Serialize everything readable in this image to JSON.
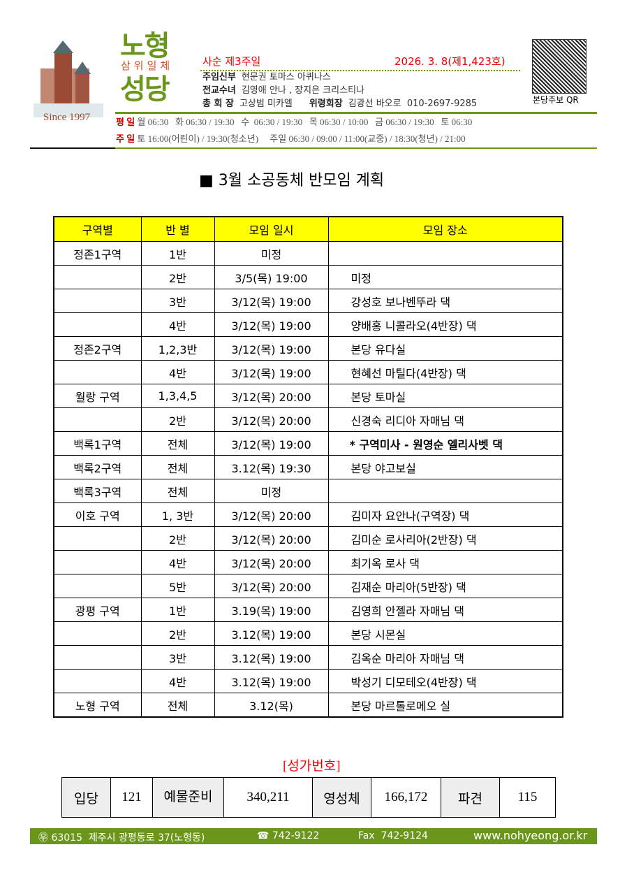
{
  "header": {
    "since": "Since 1997",
    "logo_top": "노형",
    "logo_sub": "삼위일체",
    "logo_bottom": "성당",
    "sunday": "사순 제3주일",
    "date": "2026. 3.  8(제1,423호)",
    "staff": [
      {
        "role": "주임신부",
        "name": "현문권 토마스 아퀴나스"
      },
      {
        "role": "전교수녀",
        "name": "김영애 안나 , 장지은 크리스티나"
      },
      {
        "role": "총 회 장",
        "name": "고상범 미카엘",
        "role2": "위령회장",
        "name2": "김광선 바오로  010-2697-9285"
      }
    ],
    "weekday_label": "평 일",
    "weekday_times": "월 06:30   화 06:30 / 19:30   수  06:30 / 19:30   목 06:30 / 10:00   금 06:30 / 19:30   토 06:30",
    "sunday_label": "주 일",
    "sunday_times": "토 16:00(어린이) / 19:30(청소년)     주일 06:30 / 09:00 / 11:00(교중) / 18:30(청년) / 21:00",
    "qr_label": "본당주보  QR"
  },
  "title": "■ 3월 소공동체 반모임 계획",
  "table": {
    "headers": [
      "구역별",
      "반 별",
      "모임 일시",
      "모임 장소"
    ],
    "rows": [
      [
        "정존1구역",
        "1반",
        "미정",
        ""
      ],
      [
        "",
        "2반",
        "3/5(목) 19:00",
        "미정"
      ],
      [
        "",
        "3반",
        "3/12(목) 19:00",
        "강성호 보나벤뚜라 댁"
      ],
      [
        "",
        "4반",
        "3/12(목) 19:00",
        "양배홍 니콜라오(4반장) 댁"
      ],
      [
        "정존2구역",
        "1,2,3반",
        "3/12(목) 19:00",
        "본당 유다실"
      ],
      [
        "",
        "4반",
        "3/12(목) 19:00",
        "현혜선 마틸다(4반장) 댁"
      ],
      [
        "월랑 구역",
        "1,3,4,5",
        "3/12(목) 20:00",
        "본당 토마실"
      ],
      [
        "",
        "2반",
        "3/12(목) 20:00",
        "신경숙 리디아 자매님 댁"
      ],
      [
        "백록1구역",
        "전체",
        "3/12(목) 19:00",
        "* 구역미사 - 원영순 엘리사벳 댁"
      ],
      [
        "백록2구역",
        "전체",
        "3.12(목) 19:30",
        "본당 야고보실"
      ],
      [
        "백록3구역",
        "전체",
        "미정",
        ""
      ],
      [
        "이호 구역",
        "1, 3반",
        "3/12(목) 20:00",
        "김미자 요안나(구역장) 댁"
      ],
      [
        "",
        "2반",
        "3/12(목) 20:00",
        "김미순 로사리아(2반장) 댁"
      ],
      [
        "",
        "4반",
        "3/12(목) 20:00",
        "최기옥 로사 댁"
      ],
      [
        "",
        "5반",
        "3/12(목) 20:00",
        "김재순 마리아(5반장) 댁"
      ],
      [
        "광평 구역",
        "1반",
        "3.19(목) 19:00",
        "김영희 안젤라 자매님 댁"
      ],
      [
        "",
        "2반",
        "3.12(목) 19:00",
        "본당 시몬실"
      ],
      [
        "",
        "3반",
        "3.12(목) 19:00",
        "김옥순 마리아 자매님 댁"
      ],
      [
        "",
        "4반",
        "3.12(목) 19:00",
        "박성기 디모테오(4반장) 댁"
      ],
      [
        "노형 구역",
        "전체",
        "3.12(목)",
        "본당 마르톨로메오 실"
      ]
    ]
  },
  "hymns": {
    "title": "[성가번호]",
    "cells": [
      "입당",
      "121",
      "예물준비",
      "340,211",
      "영성체",
      "166,172",
      "파견",
      "115"
    ]
  },
  "footer": {
    "address": "㉾ 63015  제주시 광평동로 37(노형동)",
    "phone": "☎ 742-9122",
    "fax": "Fax  742-9124",
    "web": "www.nohyeong.or.kr"
  },
  "colors": {
    "green": "#6b961c",
    "yellow": "#ffff00",
    "red": "#ee0000"
  }
}
